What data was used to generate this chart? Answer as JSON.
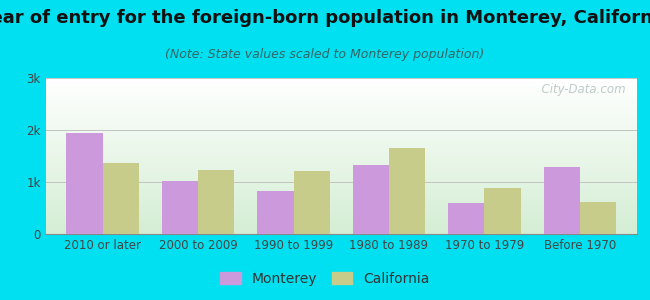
{
  "title": "Year of entry for the foreign-born population in Monterey, California",
  "subtitle": "(Note: State values scaled to Monterey population)",
  "categories": [
    "2010 or later",
    "2000 to 2009",
    "1990 to 1999",
    "1980 to 1989",
    "1970 to 1979",
    "Before 1970"
  ],
  "monterey_values": [
    1950,
    1020,
    820,
    1330,
    590,
    1280
  ],
  "california_values": [
    1370,
    1230,
    1210,
    1650,
    880,
    620
  ],
  "monterey_color": "#cc99dd",
  "california_color": "#c8cc8a",
  "bg_outer": "#00e0f0",
  "ylim": [
    0,
    3000
  ],
  "yticks": [
    0,
    1000,
    2000,
    3000
  ],
  "ytick_labels": [
    "0",
    "1k",
    "2k",
    "3k"
  ],
  "bar_width": 0.38,
  "title_fontsize": 13,
  "subtitle_fontsize": 9,
  "tick_fontsize": 8.5,
  "legend_fontsize": 10,
  "watermark_text": "  City-Data.com"
}
